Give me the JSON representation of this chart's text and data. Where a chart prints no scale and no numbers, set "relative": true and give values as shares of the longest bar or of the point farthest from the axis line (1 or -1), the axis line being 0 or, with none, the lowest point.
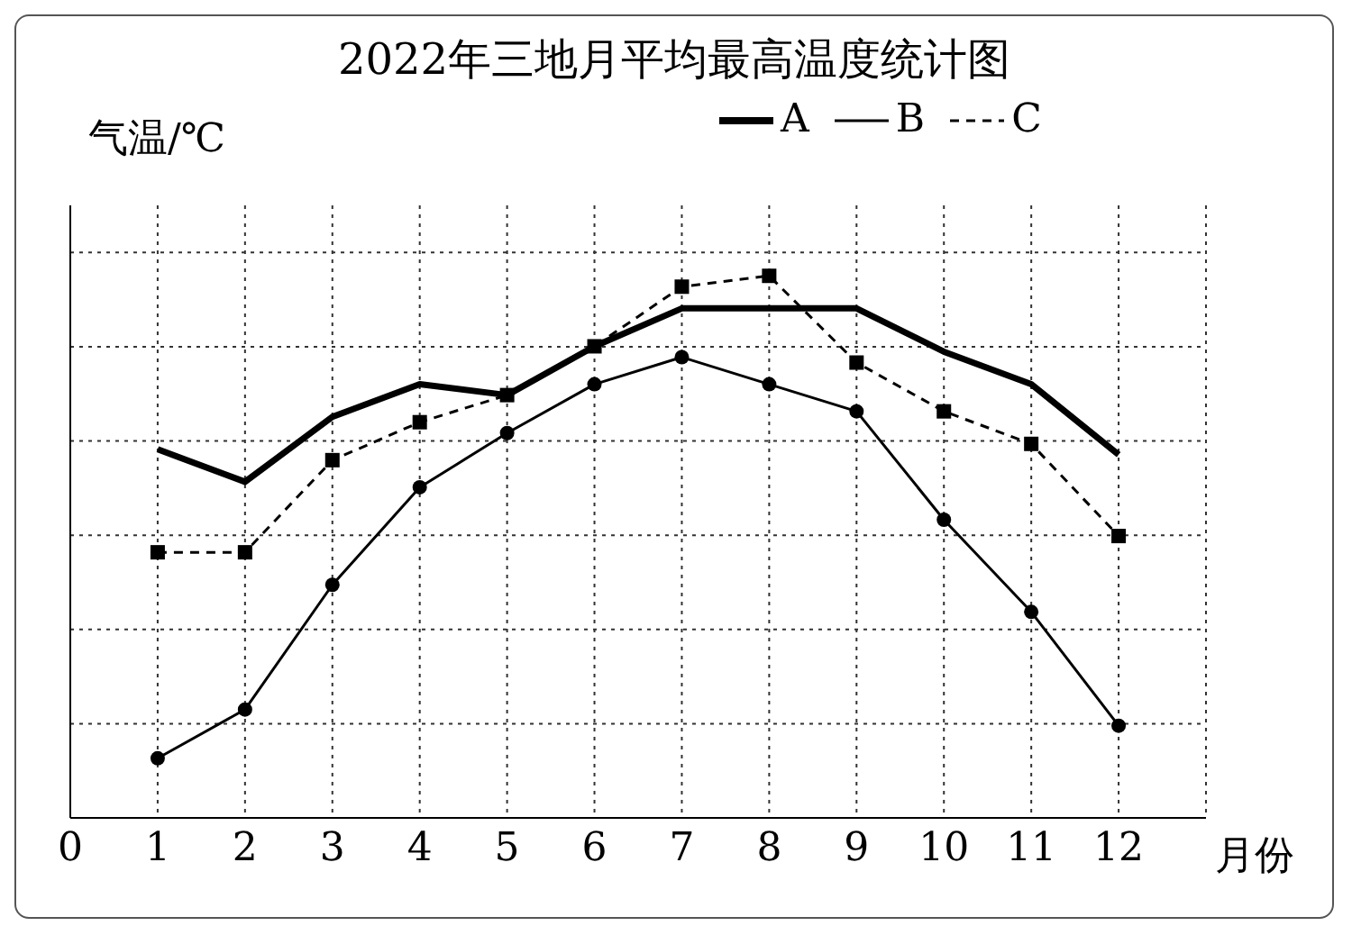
{
  "chart_data": {
    "type": "line",
    "title": "2022年三地月平均最高温度统计图",
    "xlabel": "月份",
    "ylabel": "气温/℃",
    "relative": true,
    "x": [
      1,
      2,
      3,
      4,
      5,
      6,
      7,
      8,
      9,
      10,
      11,
      12
    ],
    "xlim": [
      0,
      13
    ],
    "xticks": [
      0,
      1,
      2,
      3,
      4,
      5,
      6,
      7,
      8,
      9,
      10,
      11,
      12
    ],
    "grid": true,
    "legend": "top right",
    "series": [
      {
        "name": "A",
        "color": "#000000",
        "marker": "none",
        "line_style": "solid",
        "values": [
          0.68,
          0.62,
          0.74,
          0.8,
          0.78,
          0.87,
          0.94,
          0.94,
          0.94,
          0.86,
          0.8,
          0.67
        ]
      },
      {
        "name": "B",
        "color": "#000000",
        "marker": "circle",
        "line_style": "solid",
        "values": [
          0.11,
          0.2,
          0.43,
          0.61,
          0.71,
          0.8,
          0.85,
          0.8,
          0.75,
          0.55,
          0.38,
          0.17
        ]
      },
      {
        "name": "C",
        "color": "#000000",
        "marker": "square",
        "line_style": "dashed",
        "values": [
          0.49,
          0.49,
          0.66,
          0.73,
          0.78,
          0.87,
          0.98,
          1,
          0.84,
          0.75,
          0.69,
          0.52
        ]
      }
    ]
  }
}
